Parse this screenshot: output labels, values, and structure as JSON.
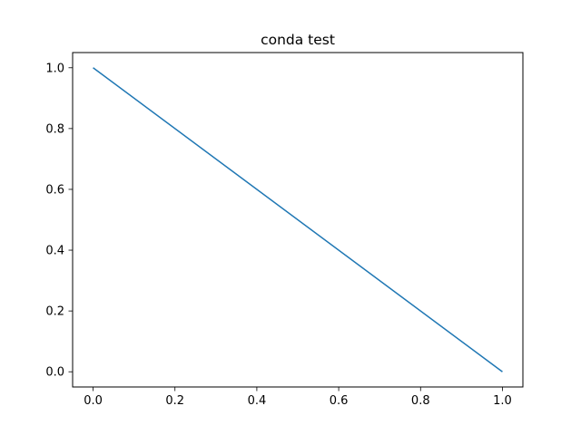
{
  "chart_data": {
    "type": "line",
    "title": "conda test",
    "xlabel": "",
    "ylabel": "",
    "xlim": [
      -0.05,
      1.05
    ],
    "ylim": [
      -0.05,
      1.05
    ],
    "x_ticks": [
      "0.0",
      "0.2",
      "0.4",
      "0.6",
      "0.8",
      "1.0"
    ],
    "y_ticks": [
      "0.0",
      "0.2",
      "0.4",
      "0.6",
      "0.8",
      "1.0"
    ],
    "grid": false,
    "legend": "none",
    "series": [
      {
        "x": [
          0,
          1
        ],
        "y": [
          1,
          0
        ],
        "color": "#1f77b4"
      }
    ]
  }
}
